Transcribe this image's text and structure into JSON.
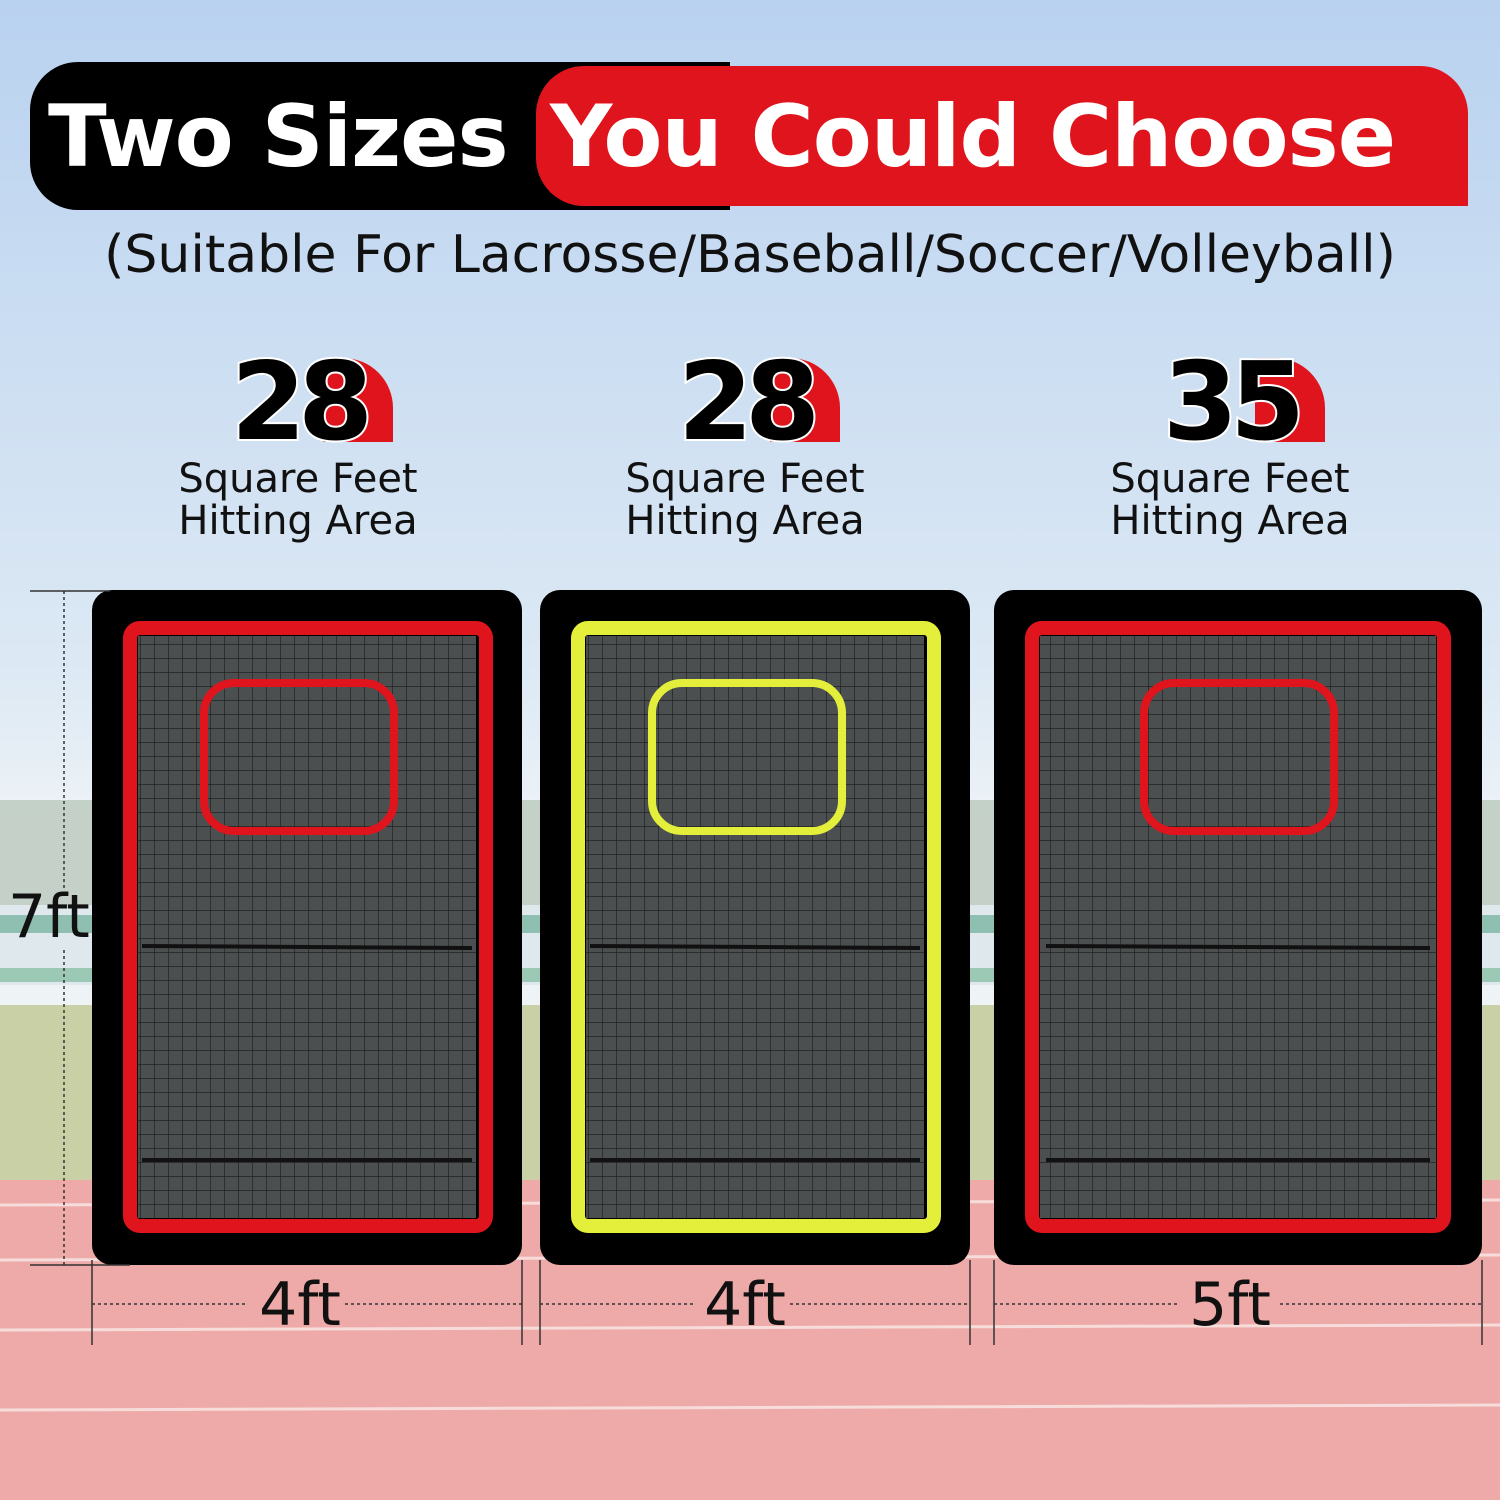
{
  "header": {
    "left_text": "Two Sizes",
    "right_text": "You Could Choose",
    "subtitle": "(Suitable For Lacrosse/Baseball/Soccer/Volleyball)"
  },
  "height_label": "7ft",
  "products": [
    {
      "area_number": "28",
      "area_line1": "Square Feet",
      "area_line2": "Hitting Area",
      "width_label": "4ft",
      "frame_color": "#e0141d"
    },
    {
      "area_number": "28",
      "area_line1": "Square Feet",
      "area_line2": "Hitting Area",
      "width_label": "4ft",
      "frame_color": "#e3ef3a"
    },
    {
      "area_number": "35",
      "area_line1": "Square Feet",
      "area_line2": "Hitting Area",
      "width_label": "5ft",
      "frame_color": "#e0141d"
    }
  ],
  "colors": {
    "accent_red": "#e0141d",
    "accent_yellow": "#e3ef3a",
    "frame_black": "#000000"
  }
}
